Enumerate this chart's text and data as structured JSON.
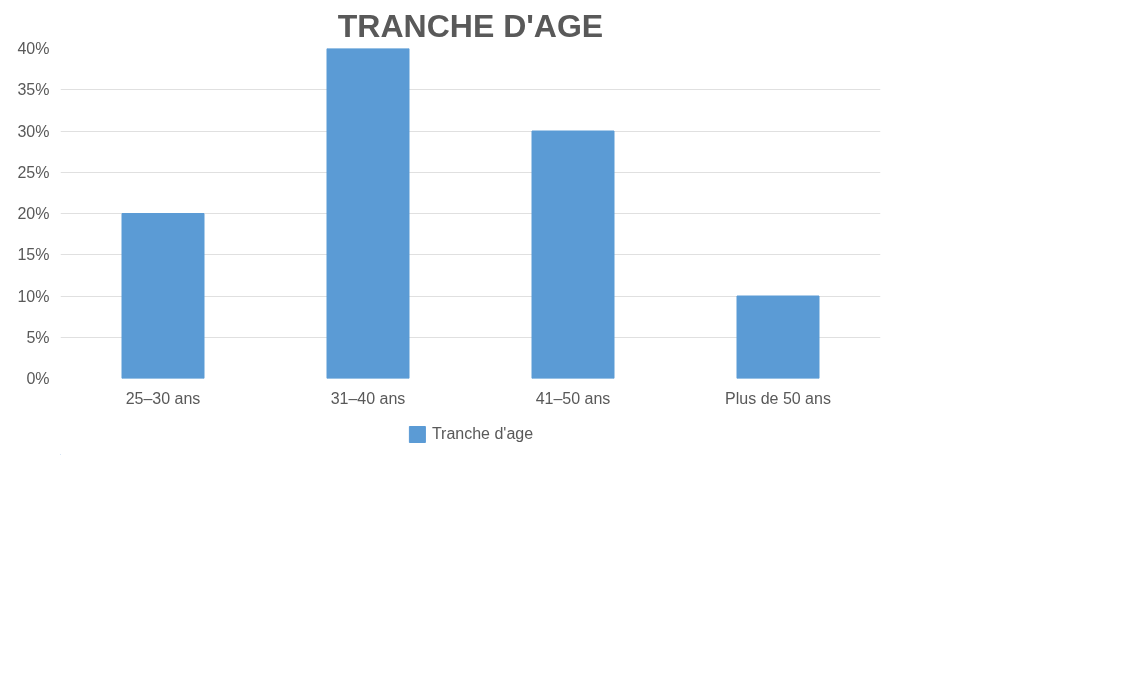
{
  "chart_data": {
    "type": "bar",
    "title": "TRANCHE D'AGE",
    "categories": [
      "25–30 ans",
      "31–40 ans",
      "41–50 ans",
      "Plus de 50 ans"
    ],
    "series": [
      {
        "name": "Tranche d'age",
        "color": "#5b9bd5",
        "values": [
          20,
          40,
          30,
          10
        ]
      }
    ],
    "ylim": [
      0,
      40
    ],
    "yticks": [
      {
        "value": 0,
        "label": "0%"
      },
      {
        "value": 5,
        "label": "5%"
      },
      {
        "value": 10,
        "label": "10%"
      },
      {
        "value": 15,
        "label": "15%"
      },
      {
        "value": 20,
        "label": "20%"
      },
      {
        "value": 25,
        "label": "25%"
      },
      {
        "value": 30,
        "label": "30%"
      },
      {
        "value": 35,
        "label": "35%"
      },
      {
        "value": 40,
        "label": "40%"
      }
    ],
    "grid": "y",
    "legend": "bottom"
  }
}
